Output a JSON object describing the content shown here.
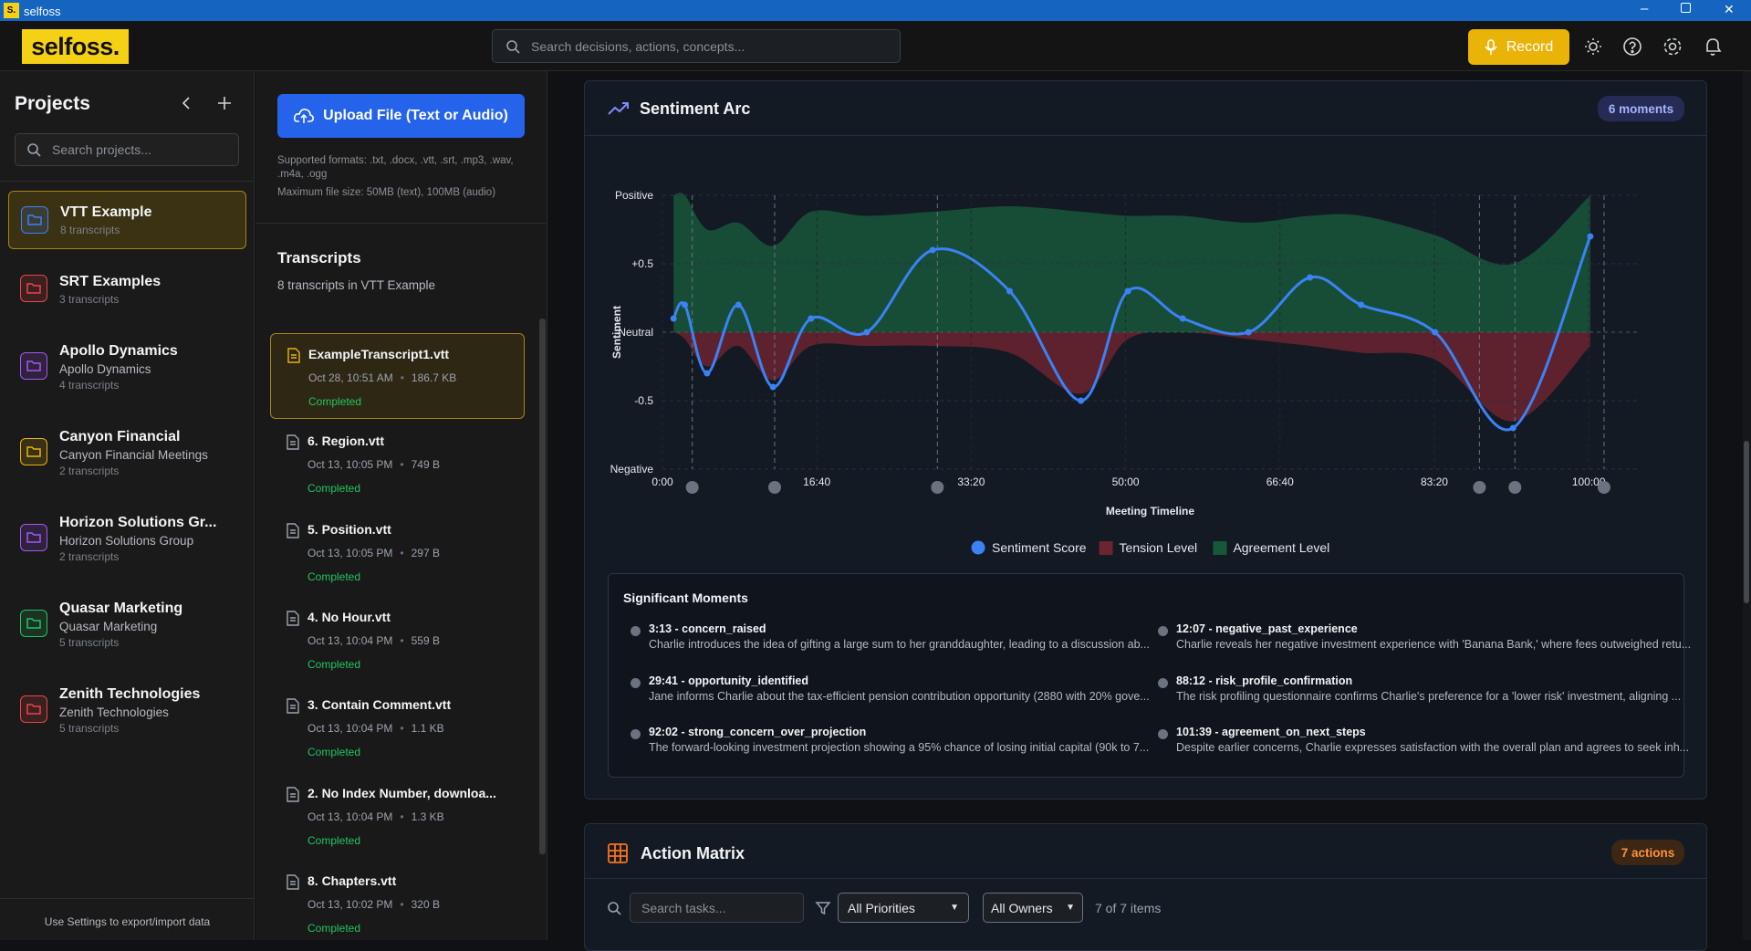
{
  "window": {
    "title": "selfoss"
  },
  "header": {
    "logo": "selfoss.",
    "search_placeholder": "Search decisions, actions, concepts...",
    "record": "Record"
  },
  "sidebar": {
    "title": "Projects",
    "search_placeholder": "Search projects...",
    "projects": [
      {
        "name": "VTT Example",
        "count": "8 transcripts",
        "color": "#3b82f6",
        "active": true
      },
      {
        "name": "SRT Examples",
        "count": "3 transcripts",
        "color": "#ef4444"
      },
      {
        "name": "Apollo Dynamics",
        "subtitle": "Apollo Dynamics",
        "count": "4 transcripts",
        "color": "#a855f7"
      },
      {
        "name": "Canyon Financial",
        "subtitle": "Canyon Financial Meetings",
        "count": "2 transcripts",
        "color": "#eab308"
      },
      {
        "name": "Horizon Solutions Gr...",
        "subtitle": "Horizon Solutions Group",
        "count": "2 transcripts",
        "color": "#a855f7"
      },
      {
        "name": "Quasar Marketing",
        "subtitle": "Quasar Marketing",
        "count": "5 transcripts",
        "color": "#22c55e"
      },
      {
        "name": "Zenith Technologies",
        "subtitle": "Zenith Technologies",
        "count": "5 transcripts",
        "color": "#ef4444"
      }
    ],
    "footer": "Use Settings to export/import data"
  },
  "upload": {
    "button": "Upload File (Text or Audio)",
    "formats": "Supported formats: .txt, .docx, .vtt, .srt, .mp3, .wav, .m4a, .ogg",
    "max_size": "Maximum file size: 50MB (text), 100MB (audio)"
  },
  "transcripts": {
    "title": "Transcripts",
    "subtitle": "8 transcripts in VTT Example",
    "items": [
      {
        "name": "ExampleTranscript1.vtt",
        "date": "Oct 28, 10:51 AM",
        "size": "186.7 KB",
        "status": "Completed",
        "active": true
      },
      {
        "name": "6. Region.vtt",
        "date": "Oct 13, 10:05 PM",
        "size": "749 B",
        "status": "Completed"
      },
      {
        "name": "5. Position.vtt",
        "date": "Oct 13, 10:05 PM",
        "size": "297 B",
        "status": "Completed"
      },
      {
        "name": "4. No Hour.vtt",
        "date": "Oct 13, 10:04 PM",
        "size": "559 B",
        "status": "Completed"
      },
      {
        "name": "3. Contain Comment.vtt",
        "date": "Oct 13, 10:04 PM",
        "size": "1.1 KB",
        "status": "Completed"
      },
      {
        "name": "2. No Index Number, downloa...",
        "date": "Oct 13, 10:04 PM",
        "size": "1.3 KB",
        "status": "Completed"
      },
      {
        "name": "8. Chapters.vtt",
        "date": "Oct 13, 10:02 PM",
        "size": "320 B",
        "status": "Completed"
      }
    ]
  },
  "sentiment": {
    "title": "Sentiment Arc",
    "badge": "6 moments",
    "moments_title": "Significant Moments",
    "moments": [
      {
        "title": "3:13 - concern_raised",
        "text": "Charlie introduces the idea of gifting a large sum to her granddaughter, leading to a discussion ab..."
      },
      {
        "title": "12:07 - negative_past_experience",
        "text": "Charlie reveals her negative investment experience with 'Banana Bank,' where fees outweighed retu..."
      },
      {
        "title": "29:41 - opportunity_identified",
        "text": "Jane informs Charlie about the tax-efficient pension contribution opportunity (2880 with 20% gove..."
      },
      {
        "title": "88:12 - risk_profile_confirmation",
        "text": "The risk profiling questionnaire confirms Charlie's preference for a 'lower risk' investment, aligning ..."
      },
      {
        "title": "92:02 - strong_concern_over_projection",
        "text": "The forward-looking investment projection showing a 95% chance of losing initial capital (90k to 7..."
      },
      {
        "title": "101:39 - agreement_on_next_steps",
        "text": "Despite earlier concerns, Charlie expresses satisfaction with the overall plan and agrees to seek inh..."
      }
    ]
  },
  "chart_data": {
    "type": "line",
    "xlabel": "Meeting Timeline",
    "ylabel": "Sentiment",
    "x": [
      72,
      145,
      289,
      492,
      716,
      962,
      1323,
      1750,
      2249,
      2711,
      3015,
      3370,
      3796,
      4194,
      4526,
      5004,
      5510,
      6010
    ],
    "series": [
      {
        "name": "Sentiment Score",
        "color": "#3b82f6",
        "style": "line",
        "values": [
          0.1,
          0.2,
          -0.3,
          0.2,
          -0.4,
          0.1,
          0,
          0.6,
          0.3,
          -0.5,
          0.3,
          0.1,
          0,
          0.4,
          0.2,
          0,
          -0.7,
          0.7
        ]
      },
      {
        "name": "Tension Level",
        "color": "#6b2430",
        "style": "area",
        "values": [
          0,
          -0.05,
          -0.25,
          -0.1,
          -0.35,
          -0.1,
          -0.1,
          -0.1,
          -0.15,
          -0.45,
          -0.05,
          0,
          -0.05,
          -0.1,
          -0.15,
          -0.2,
          -0.65,
          -0.1
        ]
      },
      {
        "name": "Agreement Level",
        "color": "#17573a",
        "style": "area",
        "values": [
          1,
          1,
          0.75,
          0.8,
          0.63,
          0.88,
          0.85,
          0.88,
          0.92,
          0.88,
          0.85,
          0.85,
          0.8,
          0.85,
          0.85,
          0.71,
          0.5,
          1
        ]
      }
    ],
    "moments_x": [
      193,
      727,
      1781,
      5292,
      5522,
      6099
    ],
    "xlim": [
      0,
      6330
    ],
    "ylim": [
      -1,
      1
    ],
    "xticks": [
      {
        "value": 0,
        "label": "0:00"
      },
      {
        "value": 1000,
        "label": "16:40"
      },
      {
        "value": 2000,
        "label": "33:20"
      },
      {
        "value": 3000,
        "label": "50:00"
      },
      {
        "value": 4000,
        "label": "66:40"
      },
      {
        "value": 5000,
        "label": "83:20"
      },
      {
        "value": 6000,
        "label": "100:00"
      }
    ],
    "yticks": [
      {
        "value": -1,
        "label": "Negative"
      },
      -0.5,
      {
        "value": 0,
        "label": "Neutral"
      },
      {
        "value": 0.5,
        "label": "+0.5"
      },
      {
        "value": 1,
        "label": "Positive"
      }
    ],
    "grid": true
  },
  "actions": {
    "title": "Action Matrix",
    "badge": "7 actions",
    "search_placeholder": "Search tasks...",
    "priority": "All Priorities",
    "owner": "All Owners",
    "count": "7 of 7 items"
  }
}
